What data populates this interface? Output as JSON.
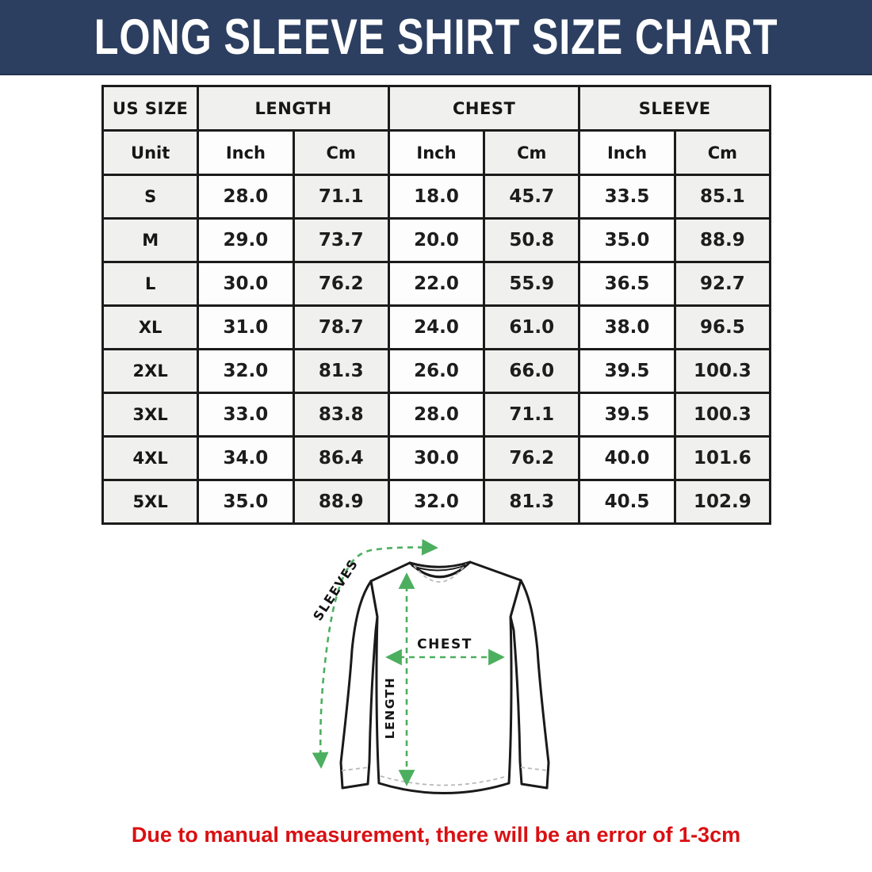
{
  "banner": {
    "title": "LONG SLEEVE SHIRT SIZE CHART",
    "bg_color": "#2d3f60",
    "text_color": "#ffffff"
  },
  "table": {
    "col_groups": [
      {
        "label": "US SIZE"
      },
      {
        "label": "LENGTH"
      },
      {
        "label": "CHEST"
      },
      {
        "label": "SLEEVE"
      }
    ],
    "unit_row": [
      "Unit",
      "Inch",
      "Cm",
      "Inch",
      "Cm",
      "Inch",
      "Cm"
    ],
    "rows": [
      {
        "size": "S",
        "values": [
          "28.0",
          "71.1",
          "18.0",
          "45.7",
          "33.5",
          "85.1"
        ]
      },
      {
        "size": "M",
        "values": [
          "29.0",
          "73.7",
          "20.0",
          "50.8",
          "35.0",
          "88.9"
        ]
      },
      {
        "size": "L",
        "values": [
          "30.0",
          "76.2",
          "22.0",
          "55.9",
          "36.5",
          "92.7"
        ]
      },
      {
        "size": "XL",
        "values": [
          "31.0",
          "78.7",
          "24.0",
          "61.0",
          "38.0",
          "96.5"
        ]
      },
      {
        "size": "2XL",
        "values": [
          "32.0",
          "81.3",
          "26.0",
          "66.0",
          "39.5",
          "100.3"
        ]
      },
      {
        "size": "3XL",
        "values": [
          "33.0",
          "83.8",
          "28.0",
          "71.1",
          "39.5",
          "100.3"
        ]
      },
      {
        "size": "4XL",
        "values": [
          "34.0",
          "86.4",
          "30.0",
          "76.2",
          "40.0",
          "101.6"
        ]
      },
      {
        "size": "5XL",
        "values": [
          "35.0",
          "88.9",
          "32.0",
          "81.3",
          "40.5",
          "102.9"
        ]
      }
    ]
  },
  "diagram": {
    "labels": {
      "sleeves": "SLEEVES",
      "chest": "CHEST",
      "length": "LENGTH"
    },
    "arrow_color": "#4caf5f"
  },
  "disclaimer": {
    "text": "Due to manual measurement, there will be an error of 1-3cm",
    "color": "#da0f12"
  },
  "chart_data": {
    "type": "table",
    "title": "LONG SLEEVE SHIRT SIZE CHART",
    "columns": [
      "US SIZE",
      "LENGTH Inch",
      "LENGTH Cm",
      "CHEST Inch",
      "CHEST Cm",
      "SLEEVE Inch",
      "SLEEVE Cm"
    ],
    "rows": [
      [
        "S",
        28.0,
        71.1,
        18.0,
        45.7,
        33.5,
        85.1
      ],
      [
        "M",
        29.0,
        73.7,
        20.0,
        50.8,
        35.0,
        88.9
      ],
      [
        "L",
        30.0,
        76.2,
        22.0,
        55.9,
        36.5,
        92.7
      ],
      [
        "XL",
        31.0,
        78.7,
        24.0,
        61.0,
        38.0,
        96.5
      ],
      [
        "2XL",
        32.0,
        81.3,
        26.0,
        66.0,
        39.5,
        100.3
      ],
      [
        "3XL",
        33.0,
        83.8,
        28.0,
        71.1,
        39.5,
        100.3
      ],
      [
        "4XL",
        34.0,
        86.4,
        30.0,
        76.2,
        40.0,
        101.6
      ],
      [
        "5XL",
        35.0,
        88.9,
        32.0,
        81.3,
        40.5,
        102.9
      ]
    ],
    "note": "Due to manual measurement, there will be an error of 1-3cm"
  }
}
